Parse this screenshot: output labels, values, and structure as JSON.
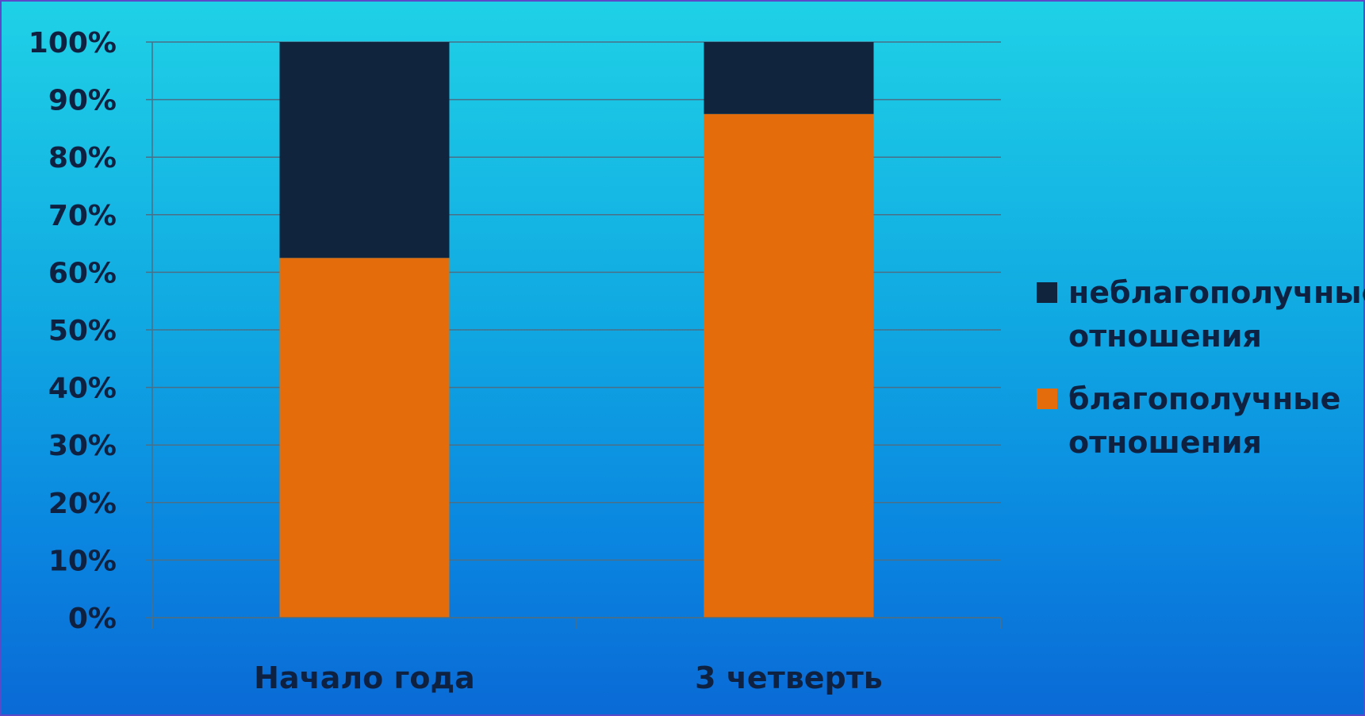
{
  "chart_data": {
    "type": "bar",
    "stacked": true,
    "normalized": true,
    "categories": [
      "Начало года",
      "3 четверть"
    ],
    "series": [
      {
        "name": "благополучные отношения",
        "values": [
          62.5,
          87.5
        ],
        "color": "#e46c0a"
      },
      {
        "name": "неблагополучные отношения",
        "values": [
          37.5,
          12.5
        ],
        "color": "#10243e"
      }
    ],
    "y_ticks": [
      "0%",
      "10%",
      "20%",
      "30%",
      "40%",
      "50%",
      "60%",
      "70%",
      "80%",
      "90%",
      "100%"
    ],
    "ylim": [
      0,
      100
    ],
    "grid": true,
    "legend_position": "right",
    "legend_order": [
      1,
      0
    ],
    "title": "",
    "xlabel": "",
    "ylabel": ""
  }
}
